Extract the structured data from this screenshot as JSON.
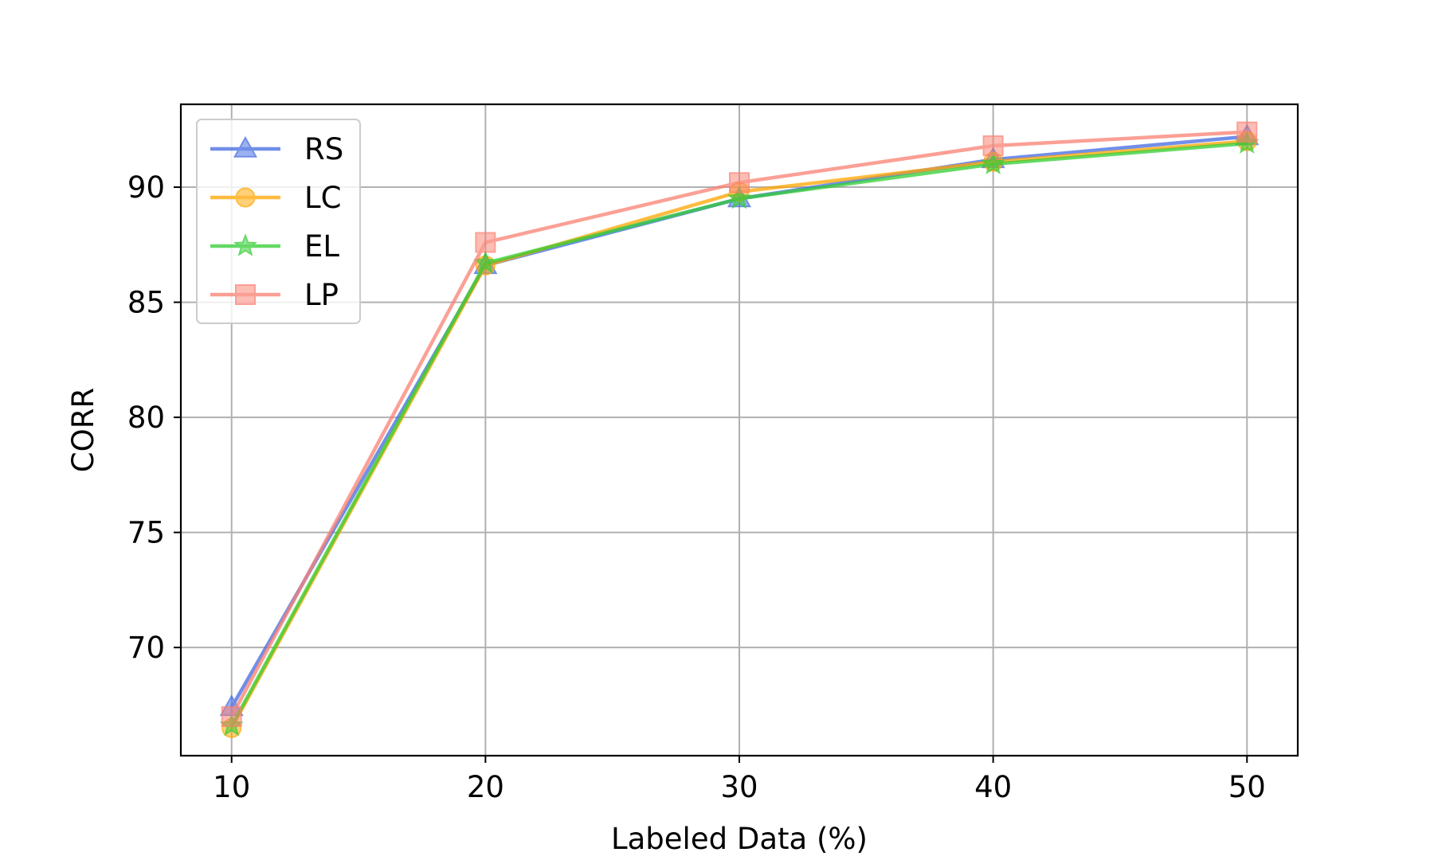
{
  "chart_data": {
    "type": "line",
    "title": "",
    "xlabel": "Labeled Data (%)",
    "ylabel": "CORR",
    "x": [
      10,
      20,
      30,
      40,
      50
    ],
    "xticks": [
      "10",
      "20",
      "30",
      "40",
      "50"
    ],
    "yticks": [
      "70",
      "75",
      "80",
      "85",
      "90"
    ],
    "xlim": [
      8,
      52
    ],
    "ylim": [
      65.3,
      93.6
    ],
    "grid": true,
    "legend_position": "upper-left",
    "series": [
      {
        "name": "RS",
        "values": [
          67.4,
          86.6,
          89.5,
          91.2,
          92.2
        ],
        "color": "#4169e1",
        "marker": "triangle"
      },
      {
        "name": "LC",
        "values": [
          66.5,
          86.6,
          89.8,
          91.1,
          92.0
        ],
        "color": "#ffa500",
        "marker": "circle"
      },
      {
        "name": "EL",
        "values": [
          66.6,
          86.7,
          89.5,
          91.0,
          91.9
        ],
        "color": "#32cd32",
        "marker": "star"
      },
      {
        "name": "LP",
        "values": [
          67.0,
          87.6,
          90.2,
          91.8,
          92.4
        ],
        "color": "#fa8072",
        "marker": "square"
      }
    ]
  }
}
